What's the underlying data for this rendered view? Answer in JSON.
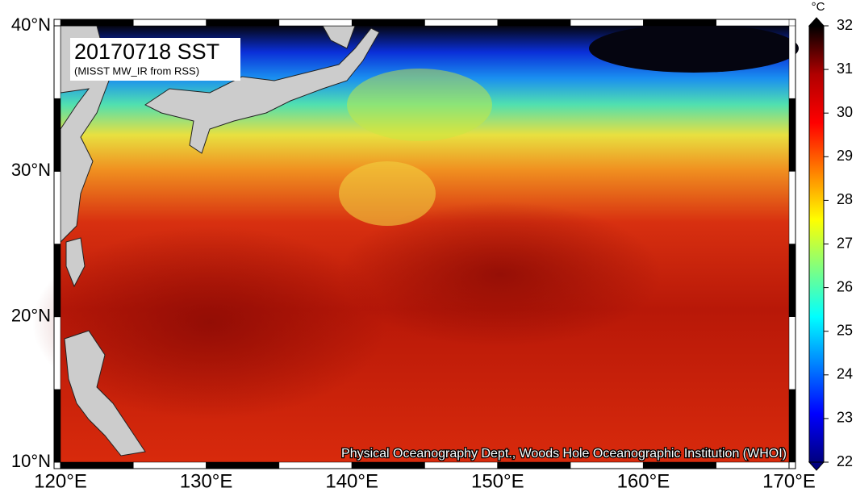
{
  "map": {
    "title": "20170718 SST",
    "subtitle": "(MISST MW_IR from RSS)",
    "credit": "Physical Oceanography Dept., Woods Hole Oceanographic Institution (WHOI)",
    "xlim": [
      120,
      170
    ],
    "ylim": [
      10,
      40
    ],
    "xticks": [
      {
        "value": 120,
        "label": "120°E"
      },
      {
        "value": 130,
        "label": "130°E"
      },
      {
        "value": 140,
        "label": "140°E"
      },
      {
        "value": 150,
        "label": "150°E"
      },
      {
        "value": 160,
        "label": "160°E"
      },
      {
        "value": 170,
        "label": "170°E"
      }
    ],
    "yticks": [
      {
        "value": 10,
        "label": "10°N"
      },
      {
        "value": 20,
        "label": "20°N"
      },
      {
        "value": 30,
        "label": "30°N"
      },
      {
        "value": 40,
        "label": "40°N"
      }
    ],
    "colorbar": {
      "unit": "°C",
      "lim": [
        22,
        32
      ],
      "ticks": [
        22,
        23,
        24,
        25,
        26,
        27,
        28,
        29,
        30,
        31,
        32
      ],
      "colors": [
        "#00007f",
        "#0000ff",
        "#0080ff",
        "#00ffff",
        "#80ff80",
        "#ffff00",
        "#ff8000",
        "#ff0000",
        "#b00000",
        "#000000"
      ]
    }
  }
}
